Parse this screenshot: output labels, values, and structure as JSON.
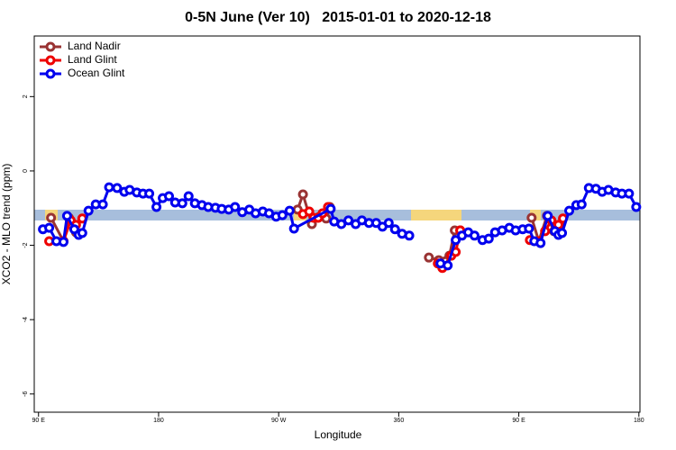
{
  "chart_data": {
    "type": "line",
    "title": "0-5N June (Ver 10)   2015-01-01 to 2020-12-18",
    "x_label": "Longitude",
    "y_label": "XCO2 - MLO trend (ppm)",
    "xlim": [
      86.8,
      540.8
    ],
    "ylim": [
      -6.49,
      3.63
    ],
    "xticks": [
      {
        "value": 90,
        "label": "90 E"
      },
      180,
      {
        "value": 270,
        "label": "90 W"
      },
      360,
      {
        "value": 450,
        "label": "90 E"
      },
      {
        "value": 540,
        "label": "180"
      }
    ],
    "yticks": [
      -6,
      -4,
      -2,
      0,
      2
    ],
    "legend": "top-left",
    "series": [
      {
        "name": "Land Nadir",
        "color": "#993333",
        "x": [
          99.4,
          108.7,
          112.8,
          118.1,
          null,
          284.2,
          288.2,
          294.9,
          300.3,
          305.6,
          308.3,
          null,
          382.6,
          390.0,
          398.0,
          402.0,
          406.1,
          null,
          459.6,
          465.0,
          471.1,
          476.4,
          481.1
        ],
        "values": [
          -1.26,
          -1.89,
          -1.26,
          -1.65,
          null,
          -1.04,
          -0.63,
          -1.43,
          -1.24,
          -1.28,
          -0.97,
          null,
          -2.33,
          -2.4,
          -2.28,
          -1.6,
          -1.6,
          null,
          -1.26,
          -1.89,
          -1.21,
          -1.62,
          -1.45
        ]
      },
      {
        "name": "Land Glint",
        "color": "#ee0000",
        "x": [
          98.0,
          108.7,
          114.1,
          118.1,
          122.8,
          null,
          288.2,
          292.9,
          296.2,
          299.6,
          302.9,
          307.0,
          null,
          389.3,
          392.7,
          399.4,
          402.7,
          406.1,
          null,
          458.3,
          465.0,
          469.7,
          474.4,
          479.7,
          483.1
        ],
        "values": [
          -1.89,
          -1.89,
          -1.33,
          -1.45,
          -1.28,
          null,
          -1.16,
          -1.09,
          -1.26,
          -1.26,
          -1.14,
          -0.97,
          null,
          -2.49,
          -2.61,
          -2.28,
          -2.18,
          -1.6,
          null,
          -1.86,
          -1.89,
          -1.62,
          -1.33,
          -1.45,
          -1.28
        ]
      },
      {
        "name": "Ocean Glint",
        "color": "#0000ee",
        "x": [
          93.3,
          98.0,
          103.4,
          108.7,
          111.4,
          116.8,
          120.1,
          122.8,
          127.5,
          132.9,
          138.2,
          142.9,
          148.9,
          154.3,
          158.3,
          163.7,
          168.3,
          173.0,
          178.4,
          183.1,
          187.8,
          192.4,
          197.8,
          202.5,
          207.2,
          212.5,
          217.2,
          222.6,
          227.3,
          232.6,
          237.3,
          242.7,
          248.0,
          252.7,
          258.1,
          262.8,
          268.1,
          272.8,
          278.2,
          281.5,
          309.0,
          311.6,
          317.0,
          322.3,
          327.7,
          332.4,
          337.7,
          343.1,
          347.8,
          352.5,
          357.2,
          362.5,
          367.9,
          null,
          391.3,
          396.7,
          402.7,
          407.4,
          412.1,
          416.8,
          422.8,
          427.5,
          432.2,
          437.5,
          442.9,
          447.6,
          452.9,
          457.6,
          461.6,
          466.3,
          471.7,
          477.0,
          479.7,
          482.4,
          487.8,
          493.1,
          497.1,
          502.5,
          507.8,
          512.5,
          517.2,
          522.6,
          527.3,
          532.6,
          538.0
        ],
        "values": [
          -1.57,
          -1.53,
          -1.89,
          -1.91,
          -1.21,
          -1.57,
          -1.72,
          -1.67,
          -1.07,
          -0.9,
          -0.9,
          -0.44,
          -0.46,
          -0.56,
          -0.51,
          -0.58,
          -0.61,
          -0.61,
          -0.97,
          -0.73,
          -0.68,
          -0.85,
          -0.87,
          -0.68,
          -0.87,
          -0.92,
          -0.97,
          -0.99,
          -1.02,
          -1.04,
          -0.97,
          -1.11,
          -1.04,
          -1.14,
          -1.09,
          -1.14,
          -1.23,
          -1.19,
          -1.07,
          -1.55,
          -1.02,
          -1.36,
          -1.43,
          -1.33,
          -1.43,
          -1.33,
          -1.4,
          -1.4,
          -1.5,
          -1.4,
          -1.57,
          -1.69,
          -1.74,
          null,
          -2.49,
          -2.54,
          -1.86,
          -1.74,
          -1.65,
          -1.74,
          -1.86,
          -1.82,
          -1.65,
          -1.6,
          -1.53,
          -1.6,
          -1.57,
          -1.55,
          -1.89,
          -1.94,
          -1.21,
          -1.62,
          -1.72,
          -1.67,
          -1.07,
          -0.92,
          -0.9,
          -0.46,
          -0.48,
          -0.56,
          -0.51,
          -0.58,
          -0.61,
          -0.61,
          -0.97
        ]
      }
    ]
  }
}
